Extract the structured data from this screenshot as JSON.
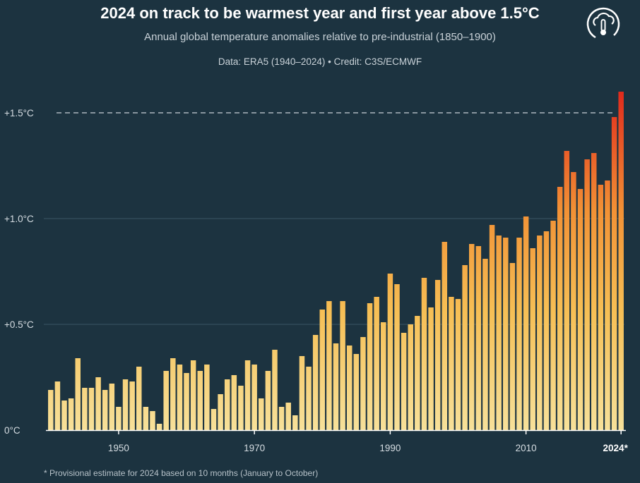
{
  "header": {
    "title": "2024 on track to be warmest year and first year above 1.5°C",
    "subtitle": "Annual global temperature anomalies relative to pre-industrial (1850–1900)",
    "credit": "Data: ERA5 (1940–2024) • Credit: C3S/ECMWF"
  },
  "footnote": "* Provisional estimate for 2024 based on 10 months (January to October)",
  "logo": {
    "icon": "cloud-thermometer-icon"
  },
  "colors": {
    "background": "#1c3340",
    "bar_low": "#f7d98a",
    "bar_mid": "#f5a637",
    "bar_high": "#e23a1f"
  },
  "chart_data": {
    "type": "bar",
    "ylim": [
      0,
      1.6
    ],
    "yticks": [
      {
        "value": 0,
        "label": "0°C"
      },
      {
        "value": 0.5,
        "label": "+0.5°C"
      },
      {
        "value": 1.0,
        "label": "+1.0°C"
      },
      {
        "value": 1.5,
        "label": "+1.5°C"
      }
    ],
    "xticks": [
      {
        "year": 1950,
        "label": "1950"
      },
      {
        "year": 1970,
        "label": "1970"
      },
      {
        "year": 1990,
        "label": "1990"
      },
      {
        "year": 2010,
        "label": "2010"
      },
      {
        "year": 2024,
        "label": "2024*"
      }
    ],
    "reference_line": {
      "value": 1.5,
      "style": "dashed"
    },
    "grid": true,
    "x": [
      1940,
      1941,
      1942,
      1943,
      1944,
      1945,
      1946,
      1947,
      1948,
      1949,
      1950,
      1951,
      1952,
      1953,
      1954,
      1955,
      1956,
      1957,
      1958,
      1959,
      1960,
      1961,
      1962,
      1963,
      1964,
      1965,
      1966,
      1967,
      1968,
      1969,
      1970,
      1971,
      1972,
      1973,
      1974,
      1975,
      1976,
      1977,
      1978,
      1979,
      1980,
      1981,
      1982,
      1983,
      1984,
      1985,
      1986,
      1987,
      1988,
      1989,
      1990,
      1991,
      1992,
      1993,
      1994,
      1995,
      1996,
      1997,
      1998,
      1999,
      2000,
      2001,
      2002,
      2003,
      2004,
      2005,
      2006,
      2007,
      2008,
      2009,
      2010,
      2011,
      2012,
      2013,
      2014,
      2015,
      2016,
      2017,
      2018,
      2019,
      2020,
      2021,
      2022,
      2023,
      2024
    ],
    "values": [
      0.19,
      0.23,
      0.14,
      0.15,
      0.34,
      0.2,
      0.2,
      0.25,
      0.19,
      0.22,
      0.11,
      0.24,
      0.23,
      0.3,
      0.11,
      0.09,
      0.03,
      0.28,
      0.34,
      0.31,
      0.27,
      0.33,
      0.28,
      0.31,
      0.1,
      0.17,
      0.24,
      0.26,
      0.21,
      0.33,
      0.31,
      0.15,
      0.28,
      0.38,
      0.11,
      0.13,
      0.07,
      0.35,
      0.3,
      0.45,
      0.57,
      0.61,
      0.41,
      0.61,
      0.4,
      0.36,
      0.44,
      0.6,
      0.63,
      0.51,
      0.74,
      0.69,
      0.46,
      0.5,
      0.54,
      0.72,
      0.58,
      0.71,
      0.89,
      0.63,
      0.62,
      0.78,
      0.88,
      0.87,
      0.81,
      0.97,
      0.92,
      0.91,
      0.79,
      0.91,
      1.01,
      0.86,
      0.92,
      0.94,
      0.99,
      1.15,
      1.32,
      1.22,
      1.14,
      1.28,
      1.31,
      1.16,
      1.18,
      1.48,
      1.6
    ]
  }
}
